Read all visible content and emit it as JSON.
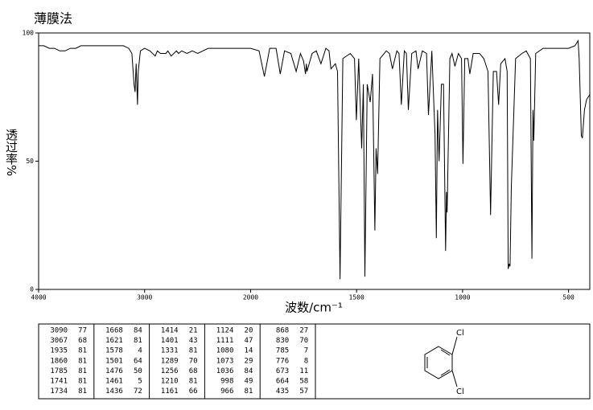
{
  "title": "薄膜法",
  "chart_data": {
    "type": "line",
    "y_label": "透过率%",
    "x_label": "波数/cm⁻¹",
    "xlim": [
      4000,
      400
    ],
    "xticks": [
      4000,
      3000,
      2000,
      1500,
      1000,
      500
    ],
    "ylim": [
      0,
      100
    ],
    "yticks": [
      0,
      50,
      100
    ],
    "color": "#000000",
    "x": [
      4000,
      3950,
      3900,
      3850,
      3800,
      3750,
      3700,
      3650,
      3600,
      3500,
      3400,
      3300,
      3200,
      3150,
      3120,
      3100,
      3090,
      3080,
      3067,
      3060,
      3040,
      3000,
      2950,
      2900,
      2880,
      2850,
      2800,
      2780,
      2750,
      2700,
      2680,
      2650,
      2600,
      2550,
      2500,
      2450,
      2400,
      2300,
      2200,
      2100,
      2000,
      1960,
      1935,
      1910,
      1880,
      1860,
      1840,
      1810,
      1785,
      1765,
      1750,
      1741,
      1737,
      1734,
      1710,
      1690,
      1668,
      1645,
      1630,
      1621,
      1600,
      1590,
      1578,
      1565,
      1530,
      1510,
      1501,
      1490,
      1476,
      1468,
      1461,
      1450,
      1436,
      1425,
      1414,
      1408,
      1401,
      1390,
      1360,
      1345,
      1331,
      1310,
      1300,
      1289,
      1275,
      1265,
      1256,
      1240,
      1220,
      1210,
      1190,
      1170,
      1161,
      1145,
      1130,
      1124,
      1118,
      1111,
      1100,
      1090,
      1080,
      1076,
      1073,
      1060,
      1050,
      1036,
      1020,
      1005,
      998,
      990,
      975,
      966,
      950,
      920,
      900,
      880,
      868,
      855,
      840,
      830,
      820,
      800,
      790,
      785,
      780,
      776,
      770,
      750,
      720,
      700,
      680,
      673,
      668,
      664,
      655,
      620,
      600,
      550,
      500,
      470,
      455,
      450,
      440,
      435,
      425,
      415,
      400
    ],
    "values": [
      95,
      95,
      94,
      94,
      93,
      93,
      94,
      94,
      95,
      95,
      95,
      95,
      95,
      94,
      92,
      80,
      77,
      88,
      72,
      85,
      93,
      94,
      93,
      91,
      93,
      92,
      92,
      93,
      91,
      93,
      92,
      93,
      92,
      93,
      92,
      93,
      94,
      94,
      94,
      94,
      94,
      93,
      83,
      94,
      94,
      84,
      93,
      92,
      85,
      92,
      89,
      84,
      88,
      85,
      92,
      93,
      88,
      94,
      93,
      86,
      88,
      85,
      4,
      90,
      92,
      90,
      66,
      90,
      55,
      80,
      5,
      80,
      73,
      84,
      23,
      55,
      45,
      90,
      93,
      92,
      86,
      93,
      92,
      72,
      93,
      92,
      70,
      92,
      93,
      86,
      93,
      92,
      68,
      93,
      60,
      20,
      70,
      50,
      80,
      80,
      15,
      38,
      30,
      90,
      92,
      87,
      92,
      90,
      49,
      90,
      90,
      84,
      92,
      92,
      90,
      85,
      29,
      85,
      85,
      72,
      88,
      90,
      85,
      8,
      10,
      9,
      40,
      90,
      92,
      93,
      90,
      12,
      70,
      58,
      92,
      94,
      94,
      94,
      94,
      95,
      97,
      90,
      60,
      59,
      70,
      74,
      76
    ]
  },
  "peak_table": {
    "columns": [
      {
        "rows": [
          [
            3090,
            77
          ],
          [
            3067,
            68
          ],
          [
            1935,
            81
          ],
          [
            1860,
            81
          ],
          [
            1785,
            81
          ],
          [
            1741,
            81
          ],
          [
            1734,
            81
          ]
        ]
      },
      {
        "rows": [
          [
            1668,
            84
          ],
          [
            1621,
            81
          ],
          [
            1578,
            4
          ],
          [
            1501,
            64
          ],
          [
            1476,
            50
          ],
          [
            1461,
            5
          ],
          [
            1436,
            72
          ]
        ]
      },
      {
        "rows": [
          [
            1414,
            21
          ],
          [
            1401,
            43
          ],
          [
            1331,
            81
          ],
          [
            1289,
            70
          ],
          [
            1256,
            68
          ],
          [
            1210,
            81
          ],
          [
            1161,
            66
          ]
        ]
      },
      {
        "rows": [
          [
            1124,
            20
          ],
          [
            1111,
            47
          ],
          [
            1080,
            14
          ],
          [
            1073,
            29
          ],
          [
            1036,
            84
          ],
          [
            998,
            49
          ],
          [
            966,
            81
          ]
        ]
      },
      {
        "rows": [
          [
            868,
            27
          ],
          [
            830,
            70
          ],
          [
            785,
            7
          ],
          [
            776,
            8
          ],
          [
            673,
            11
          ],
          [
            664,
            58
          ],
          [
            435,
            57
          ]
        ]
      }
    ]
  },
  "structure": {
    "labels": [
      "Cl",
      "Cl"
    ]
  }
}
